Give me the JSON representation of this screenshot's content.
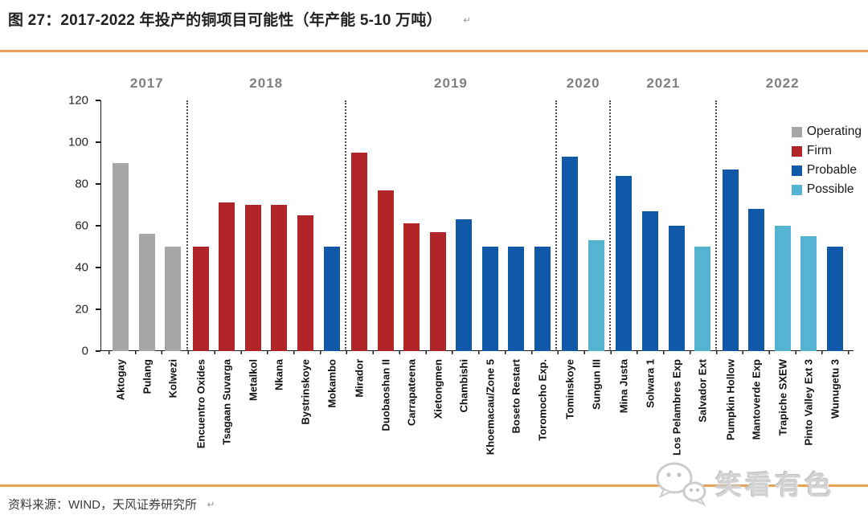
{
  "header": {
    "title": "图 27：2017-2022 年投产的铜项目可能性（年产能 5-10 万吨）",
    "return_mark": "↵"
  },
  "footer": {
    "source": "资料来源：WIND，天风证券研究所",
    "return_mark": "↵",
    "watermark": "笑看有色"
  },
  "colors": {
    "operating": "#a6a6a6",
    "firm": "#b12428",
    "probable": "#0f59a8",
    "possible": "#55b4d2",
    "accent_line": "#e8a253",
    "year_label": "#7f7f7f"
  },
  "legend": [
    {
      "label": "Operating",
      "category": "operating"
    },
    {
      "label": "Firm",
      "category": "firm"
    },
    {
      "label": "Probable",
      "category": "probable"
    },
    {
      "label": "Possible",
      "category": "possible"
    }
  ],
  "chart_data": {
    "type": "bar",
    "title": "图 27：2017-2022 年投产的铜项目可能性（年产能 5-10 万吨）",
    "xlabel": "",
    "ylabel": "",
    "ylim": [
      0,
      120
    ],
    "yticks": [
      0,
      20,
      40,
      60,
      80,
      100,
      120
    ],
    "grid": false,
    "legend_position": "top-right",
    "groups": [
      {
        "year": "2017",
        "bars": [
          {
            "label": "Aktogay",
            "value": 90,
            "category": "operating"
          },
          {
            "label": "Pulang",
            "value": 56,
            "category": "operating"
          },
          {
            "label": "Kolwezi",
            "value": 50,
            "category": "operating"
          }
        ]
      },
      {
        "year": "2018",
        "bars": [
          {
            "label": "Encuentro Oxides",
            "value": 50,
            "category": "firm"
          },
          {
            "label": "Tsagaan Suvarga",
            "value": 71,
            "category": "firm"
          },
          {
            "label": "Metalkol",
            "value": 70,
            "category": "firm"
          },
          {
            "label": "Nkana",
            "value": 70,
            "category": "firm"
          },
          {
            "label": "Bystrinskoye",
            "value": 65,
            "category": "firm"
          },
          {
            "label": "Mokambo",
            "value": 50,
            "category": "probable"
          }
        ]
      },
      {
        "year": "2019",
        "bars": [
          {
            "label": "Mirador",
            "value": 95,
            "category": "firm"
          },
          {
            "label": "Duobaoshan II",
            "value": 77,
            "category": "firm"
          },
          {
            "label": "Carrapateena",
            "value": 61,
            "category": "firm"
          },
          {
            "label": "Xietongmen",
            "value": 57,
            "category": "firm"
          },
          {
            "label": "Chambishi",
            "value": 63,
            "category": "probable"
          },
          {
            "label": "Khoemacau/Zone 5",
            "value": 50,
            "category": "probable"
          },
          {
            "label": "Boseto Restart",
            "value": 50,
            "category": "probable"
          },
          {
            "label": "Toromocho Exp.",
            "value": 50,
            "category": "probable"
          }
        ]
      },
      {
        "year": "2020",
        "bars": [
          {
            "label": "Tominskoye",
            "value": 93,
            "category": "probable"
          },
          {
            "label": "Sungun III",
            "value": 53,
            "category": "possible"
          }
        ]
      },
      {
        "year": "2021",
        "bars": [
          {
            "label": "Mina Justa",
            "value": 84,
            "category": "probable"
          },
          {
            "label": "Solwara 1",
            "value": 67,
            "category": "probable"
          },
          {
            "label": "Los Pelambres Exp",
            "value": 60,
            "category": "probable"
          },
          {
            "label": "Salvador Ext",
            "value": 50,
            "category": "possible"
          }
        ]
      },
      {
        "year": "2022",
        "bars": [
          {
            "label": "Pumpkin Hollow",
            "value": 87,
            "category": "probable"
          },
          {
            "label": "Mantoverde Exp",
            "value": 68,
            "category": "probable"
          },
          {
            "label": "Trapiche SXEW",
            "value": 60,
            "category": "possible"
          },
          {
            "label": "Pinto Valley Ext 3",
            "value": 55,
            "category": "possible"
          },
          {
            "label": "Wunugetu 3",
            "value": 50,
            "category": "probable"
          }
        ]
      }
    ]
  }
}
